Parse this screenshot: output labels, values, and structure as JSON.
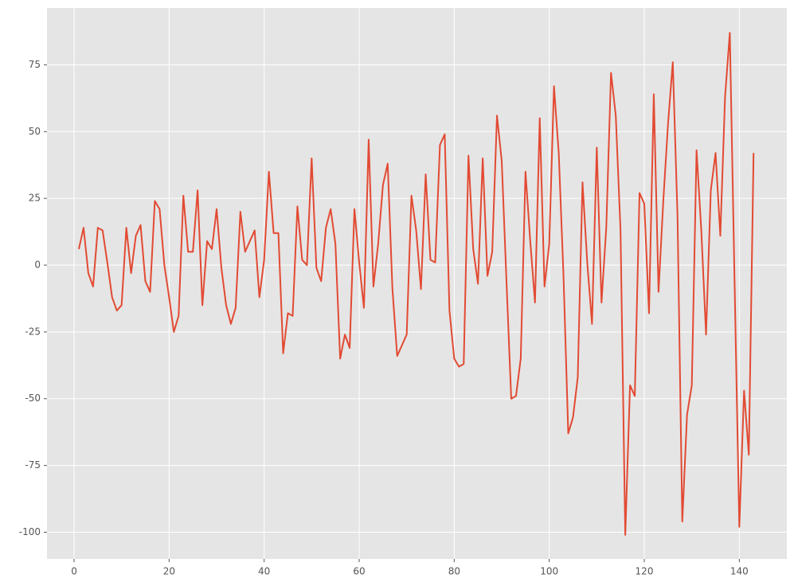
{
  "chart_data": {
    "type": "line",
    "x": [
      1,
      2,
      3,
      4,
      5,
      6,
      7,
      8,
      9,
      10,
      11,
      12,
      13,
      14,
      15,
      16,
      17,
      18,
      19,
      20,
      21,
      22,
      23,
      24,
      25,
      26,
      27,
      28,
      29,
      30,
      31,
      32,
      33,
      34,
      35,
      36,
      37,
      38,
      39,
      40,
      41,
      42,
      43,
      44,
      45,
      46,
      47,
      48,
      49,
      50,
      51,
      52,
      53,
      54,
      55,
      56,
      57,
      58,
      59,
      60,
      61,
      62,
      63,
      64,
      65,
      66,
      67,
      68,
      69,
      70,
      71,
      72,
      73,
      74,
      75,
      76,
      77,
      78,
      79,
      80,
      81,
      82,
      83,
      84,
      85,
      86,
      87,
      88,
      89,
      90,
      91,
      92,
      93,
      94,
      95,
      96,
      97,
      98,
      99,
      100,
      101,
      102,
      103,
      104,
      105,
      106,
      107,
      108,
      109,
      110,
      111,
      112,
      113,
      114,
      115,
      116,
      117,
      118,
      119,
      120,
      121,
      122,
      123,
      124,
      125,
      126,
      127,
      128,
      129,
      130,
      131,
      132,
      133,
      134,
      135,
      136,
      137,
      138,
      139,
      140,
      141,
      142,
      143
    ],
    "series": [
      {
        "color": "#e24a33",
        "values": [
          6,
          14,
          -3,
          -8,
          14,
          13,
          1,
          -12,
          -17,
          -15,
          14,
          -3,
          11,
          15,
          -6,
          -10,
          24,
          21,
          0,
          -12,
          -25,
          -19,
          26,
          5,
          5,
          28,
          -15,
          9,
          6,
          21,
          -1,
          -15,
          -22,
          -16,
          20,
          5,
          9,
          13,
          -12,
          2,
          35,
          12,
          12,
          -33,
          -18,
          -19,
          22,
          2,
          0,
          40,
          -1,
          -6,
          14,
          21,
          8,
          -35,
          -26,
          -31,
          21,
          1,
          -16,
          47,
          -8,
          8,
          30,
          38,
          -9,
          -34,
          -30,
          -26,
          26,
          13,
          -9,
          34,
          2,
          1,
          45,
          49,
          -17,
          -35,
          -38,
          -37,
          41,
          6,
          -7,
          40,
          -4,
          5,
          56,
          39,
          -6,
          -50,
          -49,
          -35,
          35,
          9,
          -14,
          55,
          -8,
          8,
          67,
          42,
          -4,
          -63,
          -57,
          -42,
          31,
          1,
          -22,
          44,
          -14,
          14,
          72,
          56,
          13,
          -101,
          -45,
          -49,
          27,
          23,
          -18,
          64,
          -10,
          24,
          53,
          76,
          18,
          -96,
          -56,
          -45,
          43,
          13,
          -26,
          28,
          42,
          11,
          63,
          87,
          -6,
          -98,
          -47,
          -71,
          42
        ]
      }
    ],
    "xlim": [
      -5.7,
      150
    ],
    "ylim": [
      -110,
      96.3
    ],
    "xticks": [
      0,
      20,
      40,
      60,
      80,
      100,
      120,
      140
    ],
    "yticks": [
      -100,
      -75,
      -50,
      -25,
      0,
      25,
      50,
      75
    ],
    "grid": true
  }
}
